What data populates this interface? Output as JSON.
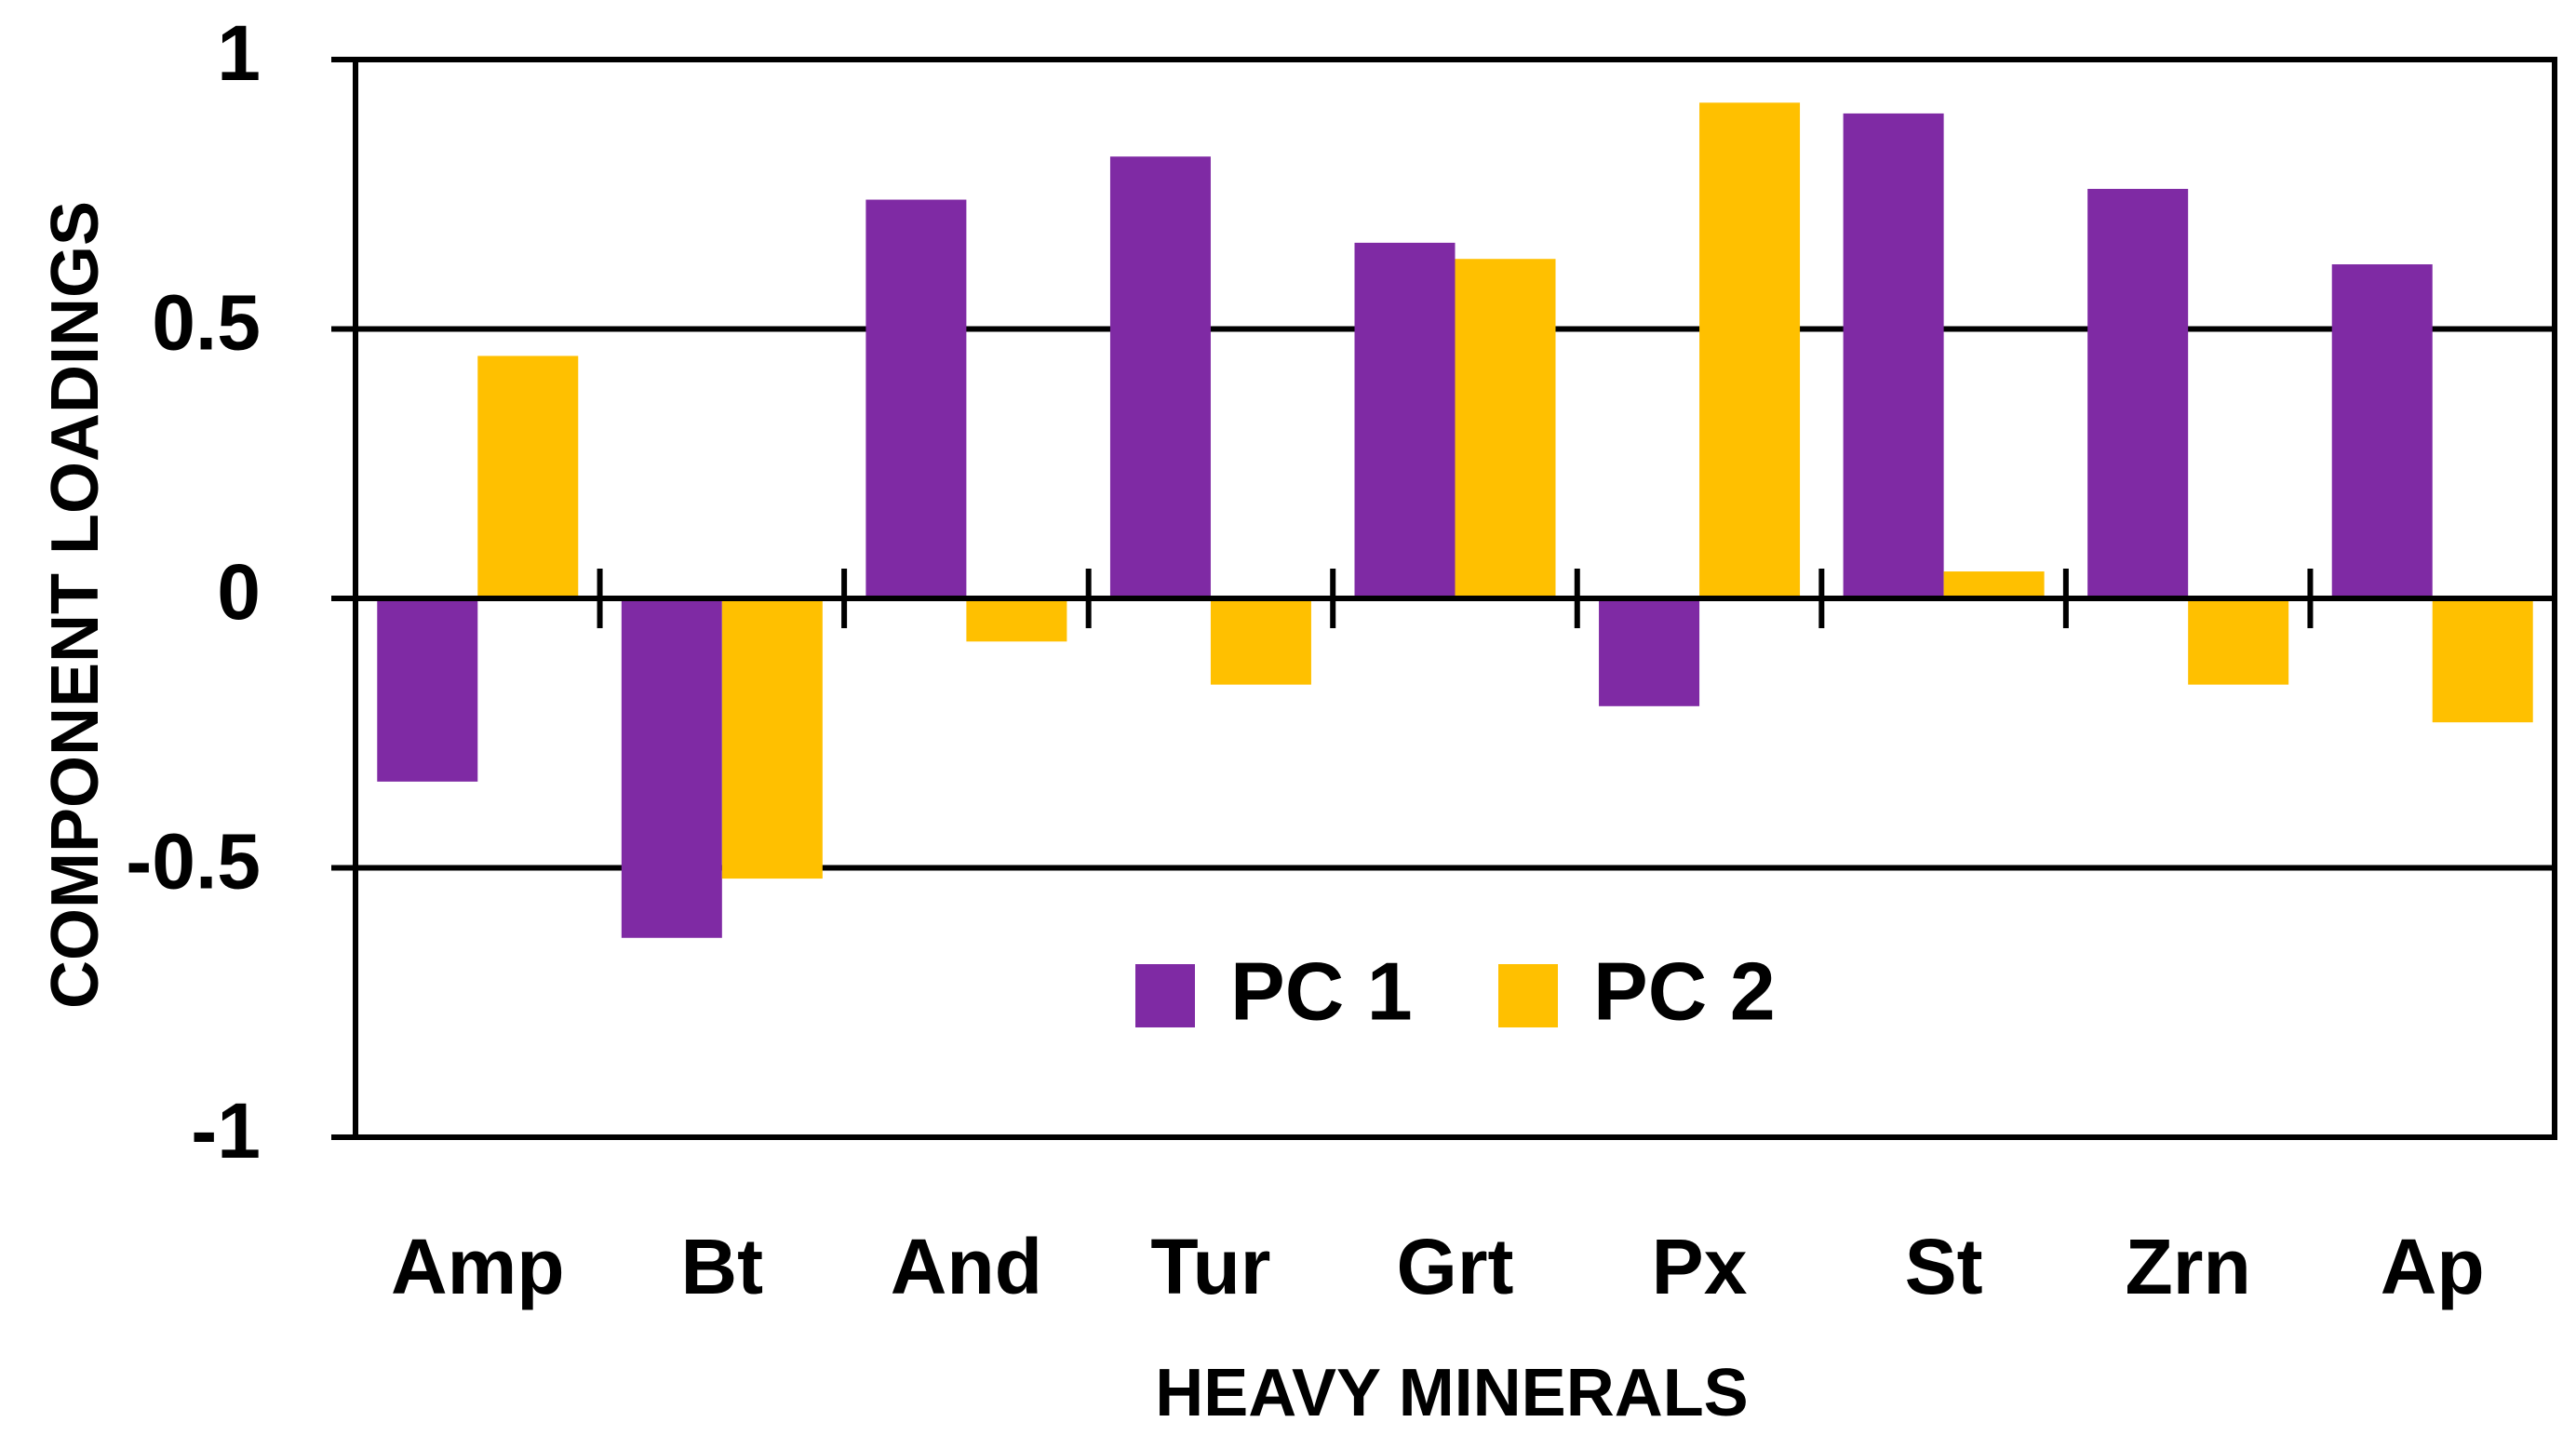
{
  "chart_data": {
    "type": "bar",
    "title": "",
    "xlabel": "HEAVY MINERALS",
    "ylabel": "COMPONENT  LOADINGS",
    "ylim": [
      -1,
      1
    ],
    "yticks": [
      1,
      0.5,
      0,
      -0.5,
      -1
    ],
    "ytick_labels": [
      "1",
      "0.5",
      "0",
      "-0.5",
      "-1"
    ],
    "grid": true,
    "legend_position": "bottom-center",
    "categories": [
      "Amp",
      "Bt",
      "And",
      "Tur",
      "Grt",
      "Px",
      "St",
      "Zrn",
      "Ap"
    ],
    "series": [
      {
        "name": "PC 1",
        "color": "#7F2AA4",
        "values": [
          -0.34,
          -0.63,
          0.74,
          0.82,
          0.66,
          -0.2,
          0.9,
          0.76,
          0.62
        ]
      },
      {
        "name": "PC 2",
        "color": "#FFC000",
        "values": [
          0.45,
          -0.52,
          -0.08,
          -0.16,
          0.63,
          0.92,
          0.05,
          -0.16,
          -0.23
        ]
      }
    ]
  }
}
